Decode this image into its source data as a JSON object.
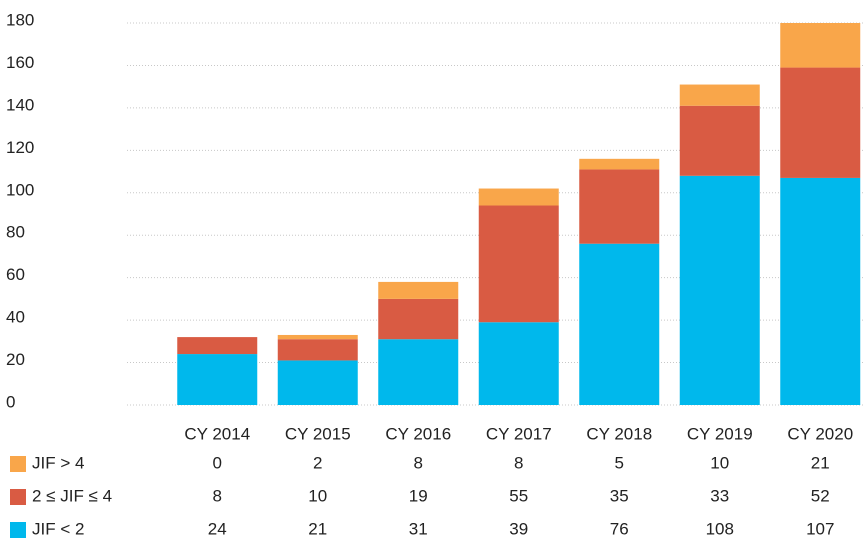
{
  "chart_data": {
    "type": "stacked_bar",
    "categories": [
      "CY 2014",
      "CY 2015",
      "CY 2016",
      "CY 2017",
      "CY 2018",
      "CY 2019",
      "CY 2020"
    ],
    "series": [
      {
        "name": "JIF < 2",
        "color": "#00b8ec",
        "values": [
          24,
          21,
          31,
          39,
          76,
          108,
          107
        ]
      },
      {
        "name": "2 ≤ JIF ≤ 4",
        "color": "#d95b43",
        "values": [
          8,
          10,
          19,
          55,
          35,
          33,
          52
        ]
      },
      {
        "name": "JIF > 4",
        "color": "#f9a64a",
        "values": [
          0,
          2,
          8,
          8,
          5,
          10,
          21
        ]
      }
    ],
    "ylim": [
      0,
      180
    ],
    "yticks": [
      0,
      20,
      40,
      60,
      80,
      100,
      120,
      140,
      160,
      180
    ],
    "grid": true
  }
}
